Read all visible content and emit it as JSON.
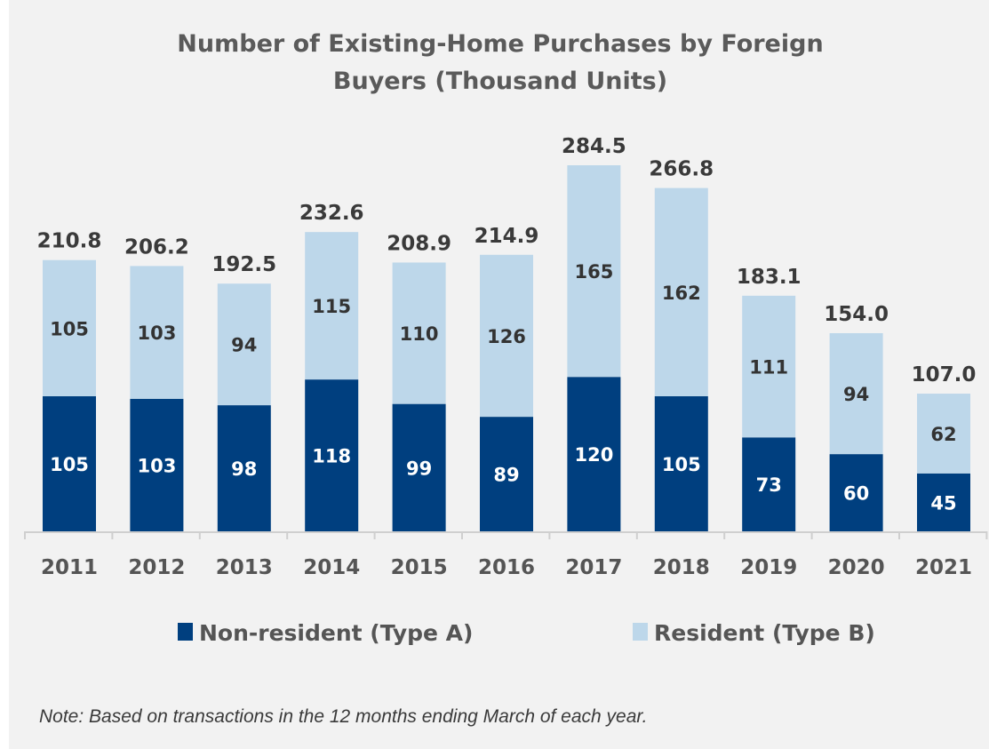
{
  "chart_data": {
    "type": "bar",
    "stacked": true,
    "title": "Number of Existing-Home Purchases by Foreign Buyers (Thousand Units)",
    "title_lines": [
      "Number of Existing-Home Purchases by Foreign",
      "Buyers (Thousand Units)"
    ],
    "categories": [
      "2011",
      "2012",
      "2013",
      "2014",
      "2015",
      "2016",
      "2017",
      "2018",
      "2019",
      "2020",
      "2021"
    ],
    "series": [
      {
        "name": "Non-resident (Type A)",
        "color": "#003f7f",
        "values": [
          105,
          103,
          98,
          118,
          99,
          89,
          120,
          105,
          73,
          60,
          45
        ]
      },
      {
        "name": "Resident (Type B)",
        "color": "#bdd7ea",
        "values": [
          105,
          103,
          94,
          115,
          110,
          126,
          165,
          162,
          111,
          94,
          62
        ]
      }
    ],
    "totals": [
      "210.8",
      "206.2",
      "192.5",
      "232.6",
      "208.9",
      "214.9",
      "284.5",
      "266.8",
      "183.1",
      "154.0",
      "107.0"
    ],
    "ylim": [
      0,
      290
    ],
    "grid": false,
    "legend_placement": "bottom",
    "note": "Note: Based on transactions in the 12 months ending March of each year."
  }
}
